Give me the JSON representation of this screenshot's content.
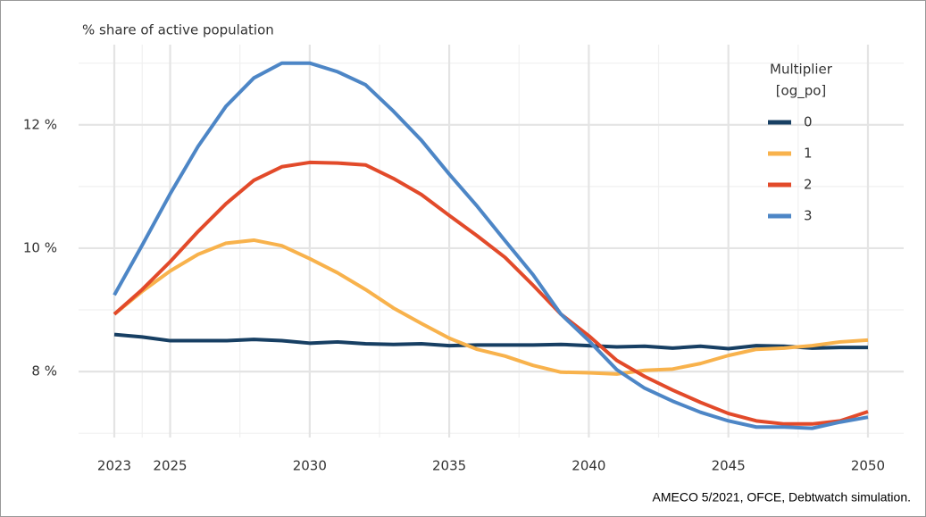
{
  "chart_data": {
    "type": "line",
    "y_label": "% share of active population",
    "caption": "AMECO 5/2021, OFCE, Debtwatch simulation.",
    "legend_title": [
      "Multiplier",
      "[og_po]"
    ],
    "legend_position": "top-right",
    "grid": true,
    "x": [
      2023,
      2024,
      2025,
      2026,
      2027,
      2028,
      2029,
      2030,
      2031,
      2032,
      2033,
      2034,
      2035,
      2036,
      2037,
      2038,
      2039,
      2040,
      2041,
      2042,
      2043,
      2044,
      2045,
      2046,
      2047,
      2048,
      2049,
      2050
    ],
    "xlim": [
      2021.72,
      2051.28
    ],
    "xticks": [
      2023,
      2025,
      2030,
      2035,
      2040,
      2045,
      2050
    ],
    "xminor": [
      2024,
      2027.5,
      2032.5,
      2037.5,
      2042.5,
      2047.5
    ],
    "ylim": [
      6.93,
      13.3
    ],
    "yticks": [
      {
        "value": 8,
        "label": "8 %"
      },
      {
        "value": 10,
        "label": "10 %"
      },
      {
        "value": 12,
        "label": "12 %"
      }
    ],
    "yminor": [
      7,
      9,
      11,
      13
    ],
    "series": [
      {
        "name": "0",
        "color": "#173f63",
        "values": [
          8.6,
          8.56,
          8.5,
          8.5,
          8.5,
          8.52,
          8.5,
          8.46,
          8.48,
          8.45,
          8.44,
          8.45,
          8.42,
          8.43,
          8.43,
          8.43,
          8.44,
          8.42,
          8.4,
          8.41,
          8.38,
          8.41,
          8.37,
          8.42,
          8.41,
          8.38,
          8.39,
          8.39
        ]
      },
      {
        "name": "1",
        "color": "#f8b24c",
        "values": [
          8.93,
          9.3,
          9.63,
          9.9,
          10.08,
          10.13,
          10.04,
          9.83,
          9.6,
          9.33,
          9.03,
          8.78,
          8.54,
          8.36,
          8.25,
          8.1,
          7.99,
          7.98,
          7.96,
          8.02,
          8.04,
          8.13,
          8.26,
          8.36,
          8.38,
          8.42,
          8.48,
          8.51
        ]
      },
      {
        "name": "2",
        "color": "#e24a2a",
        "values": [
          8.93,
          9.33,
          9.78,
          10.27,
          10.72,
          11.1,
          11.32,
          11.39,
          11.38,
          11.35,
          11.13,
          10.87,
          10.53,
          10.2,
          9.85,
          9.4,
          8.93,
          8.58,
          8.18,
          7.92,
          7.7,
          7.5,
          7.32,
          7.2,
          7.15,
          7.15,
          7.2,
          7.35
        ]
      },
      {
        "name": "3",
        "color": "#4d86c6",
        "values": [
          9.24,
          10.05,
          10.88,
          11.65,
          12.3,
          12.76,
          13.0,
          13.0,
          12.86,
          12.65,
          12.22,
          11.75,
          11.2,
          10.68,
          10.12,
          9.57,
          8.93,
          8.5,
          8.03,
          7.73,
          7.52,
          7.34,
          7.2,
          7.1,
          7.1,
          7.08,
          7.18,
          7.26
        ]
      }
    ]
  }
}
